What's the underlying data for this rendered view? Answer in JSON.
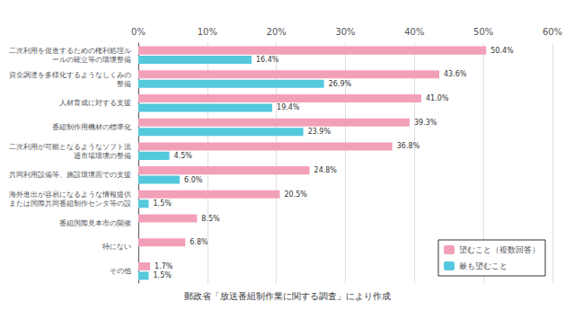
{
  "chart_data": {
    "type": "bar",
    "orientation": "horizontal",
    "categories": [
      "二次利用を促進するための権利処理ル\nールの確立等の環境整備",
      "資金調達を多様化するようなしくみの\n整備",
      "人材育成に対する支援",
      "番組制作用機材の標準化",
      "二次利用が可能となるようなソフト流\n通市場環境の整備",
      "共同利用設備等、施設環境面での支援",
      "海外進出が容易になるような情報提供\nまたは国際共同番組制作センタ等の設",
      "番組国際見本市の開催",
      "特にない",
      "その他"
    ],
    "series": [
      {
        "name": "望むこと（複数回答）",
        "color": "#F2A0B8",
        "values": [
          50.4,
          43.6,
          41.0,
          39.3,
          36.8,
          24.8,
          20.5,
          8.5,
          6.8,
          1.7
        ],
        "value_labels": [
          "50.4%",
          "43.6%",
          "41.0%",
          "39.3%",
          "36.8%",
          "24.8%",
          "20.5%",
          "8.5%",
          "6.8%",
          "1.7%"
        ]
      },
      {
        "name": "最も望むこと",
        "color": "#54C8DC",
        "values": [
          16.4,
          26.9,
          19.4,
          23.9,
          4.5,
          6.0,
          1.5,
          null,
          null,
          1.5
        ],
        "value_labels": [
          "16.4%",
          "26.9%",
          "19.4%",
          "23.9%",
          "4.5%",
          "6.0%",
          "1.5%",
          null,
          null,
          "1.5%"
        ]
      }
    ],
    "xlim": [
      0,
      60
    ],
    "xticks": [
      {
        "value": 0,
        "label": "0%"
      },
      {
        "value": 10,
        "label": "10%"
      },
      {
        "value": 20,
        "label": "20%"
      },
      {
        "value": 30,
        "label": "30%"
      },
      {
        "value": 40,
        "label": "40%"
      },
      {
        "value": 50,
        "label": "50%"
      },
      {
        "value": 60,
        "label": "60%"
      }
    ],
    "grid": true,
    "legend": "lower right",
    "data_labels": true,
    "annotations": [
      "郵政省「放送番組制作業に関する調査」により作成"
    ]
  }
}
